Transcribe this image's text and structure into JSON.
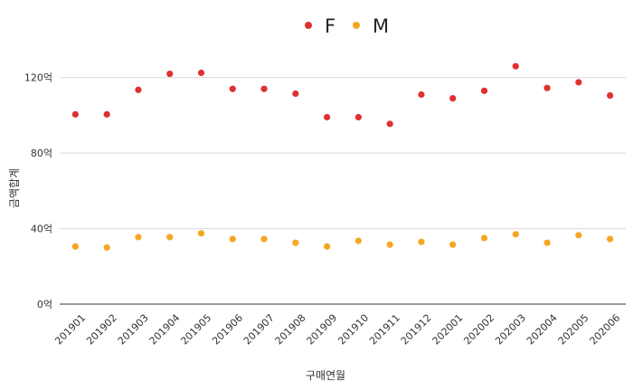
{
  "chart_data": {
    "type": "scatter",
    "categories": [
      "201901",
      "201902",
      "201903",
      "201904",
      "201905",
      "201906",
      "201907",
      "201908",
      "201909",
      "201910",
      "201911",
      "201912",
      "202001",
      "202002",
      "202003",
      "202004",
      "202005",
      "202006"
    ],
    "series": [
      {
        "name": "F",
        "color": "#e03030",
        "values": [
          100.5,
          100.5,
          113.5,
          122.0,
          122.5,
          114.0,
          114.0,
          111.5,
          99.0,
          99.0,
          95.5,
          111.0,
          109.0,
          113.0,
          126.0,
          114.5,
          117.5,
          110.5
        ]
      },
      {
        "name": "M",
        "color": "#f5a623",
        "values": [
          30.5,
          30.0,
          35.5,
          35.5,
          37.5,
          34.5,
          34.5,
          32.5,
          30.5,
          33.5,
          31.5,
          33.0,
          31.5,
          35.0,
          37.0,
          32.5,
          36.5,
          34.5
        ]
      }
    ],
    "y_ticks": [
      {
        "value": 0,
        "label": "0억"
      },
      {
        "value": 40,
        "label": "40억"
      },
      {
        "value": 80,
        "label": "80억"
      },
      {
        "value": 120,
        "label": "120억"
      }
    ],
    "ylim": [
      0,
      140
    ],
    "xlabel": "구매연월",
    "ylabel": "금액합계",
    "grid": true,
    "legend_position": "top-center"
  }
}
